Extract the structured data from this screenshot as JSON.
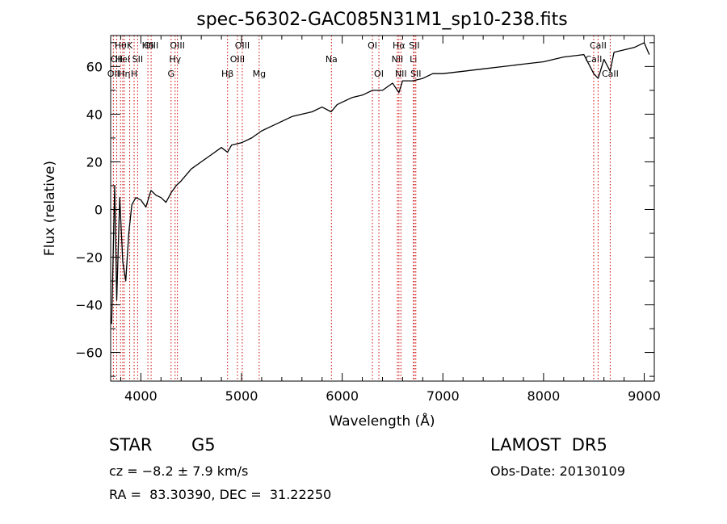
{
  "chart_data": {
    "type": "line",
    "title": "spec-56302-GAC085N31M1_sp10-238.fits",
    "xlabel": "Wavelength (Å)",
    "ylabel": "Flux (relative)",
    "xlim": [
      3700,
      9100
    ],
    "ylim": [
      -72,
      73
    ],
    "x_ticks": [
      4000,
      5000,
      6000,
      7000,
      8000,
      9000
    ],
    "x_tick_labels": [
      "4000",
      "5000",
      "6000",
      "7000",
      "8000",
      "9000"
    ],
    "y_ticks": [
      -60,
      -40,
      -20,
      0,
      20,
      40,
      60
    ],
    "y_tick_labels": [
      "−60",
      "−40",
      "−20",
      "0",
      "20",
      "40",
      "60"
    ],
    "grid": false,
    "series": [
      {
        "x": [
          3710,
          3740,
          3760,
          3790,
          3820,
          3850,
          3880,
          3910,
          3950,
          4000,
          4050,
          4100,
          4150,
          4200,
          4250,
          4300,
          4350,
          4400,
          4500,
          4600,
          4700,
          4800,
          4861,
          4900,
          5000,
          5100,
          5200,
          5300,
          5400,
          5500,
          5600,
          5700,
          5800,
          5890,
          5950,
          6000,
          6100,
          6200,
          6300,
          6400,
          6500,
          6563,
          6600,
          6700,
          6800,
          6900,
          7000,
          7200,
          7400,
          7600,
          7800,
          8000,
          8200,
          8400,
          8498,
          8542,
          8600,
          8662,
          8700,
          8800,
          8900,
          9000,
          9050
        ],
        "y": [
          -48,
          10,
          -38,
          5,
          -22,
          -30,
          -10,
          2,
          5,
          4,
          1,
          8,
          6,
          5,
          3,
          7,
          10,
          12,
          17,
          20,
          23,
          26,
          24,
          27,
          28,
          30,
          33,
          35,
          37,
          39,
          40,
          41,
          43,
          41,
          44,
          45,
          47,
          48,
          50,
          50,
          53,
          49,
          54,
          54,
          55,
          57,
          57,
          58,
          59,
          60,
          61,
          62,
          64,
          65,
          57,
          55,
          63,
          58,
          66,
          67,
          68,
          70,
          65
        ]
      }
    ],
    "lines": [
      {
        "x": 3727,
        "row": 3,
        "label": "OII"
      },
      {
        "x": 3760,
        "row": 2,
        "label": "OII"
      },
      {
        "x": 3798,
        "row": 1,
        "label": "Hθ"
      },
      {
        "x": 3820,
        "row": 2,
        "label": "HeI"
      },
      {
        "x": 3835,
        "row": 3,
        "label": "Hη"
      },
      {
        "x": 3889,
        "row": 1,
        "label": "K"
      },
      {
        "x": 3933,
        "row": 3,
        "label": "H"
      },
      {
        "x": 3968,
        "row": 2,
        "label": "SII"
      },
      {
        "x": 4070,
        "row": 1,
        "label": "Hδ"
      },
      {
        "x": 4102,
        "row": 1,
        "label": "OIII"
      },
      {
        "x": 4300,
        "row": 3,
        "label": "G"
      },
      {
        "x": 4340,
        "row": 2,
        "label": "Hγ"
      },
      {
        "x": 4363,
        "row": 1,
        "label": "OIII"
      },
      {
        "x": 4861,
        "row": 3,
        "label": "Hβ"
      },
      {
        "x": 4959,
        "row": 2,
        "label": "OIII"
      },
      {
        "x": 5007,
        "row": 1,
        "label": "OIII"
      },
      {
        "x": 5175,
        "row": 3,
        "label": "Mg"
      },
      {
        "x": 5893,
        "row": 2,
        "label": "Na"
      },
      {
        "x": 6300,
        "row": 1,
        "label": "OI"
      },
      {
        "x": 6364,
        "row": 3,
        "label": "OI"
      },
      {
        "x": 6548,
        "row": 2,
        "label": "NII"
      },
      {
        "x": 6563,
        "row": 1,
        "label": "Hα"
      },
      {
        "x": 6583,
        "row": 3,
        "label": "NII"
      },
      {
        "x": 6707,
        "row": 2,
        "label": "Li"
      },
      {
        "x": 6716,
        "row": 1,
        "label": "SII"
      },
      {
        "x": 6731,
        "row": 3,
        "label": "SII"
      },
      {
        "x": 8498,
        "row": 2,
        "label": "CaII"
      },
      {
        "x": 8542,
        "row": 1,
        "label": "CaII"
      },
      {
        "x": 8662,
        "row": 3,
        "label": "CaII"
      }
    ],
    "colors": {
      "spectrum": "#000000",
      "lines": "#cc0000"
    }
  },
  "info": {
    "object_class": "STAR",
    "subclass": "G5",
    "survey": "LAMOST  DR5",
    "redshift": "cz = −8.2 ± 7.9 km/s",
    "obs_date": "Obs-Date: 20130109",
    "coords": "RA =  83.30390, DEC =  31.22250"
  }
}
